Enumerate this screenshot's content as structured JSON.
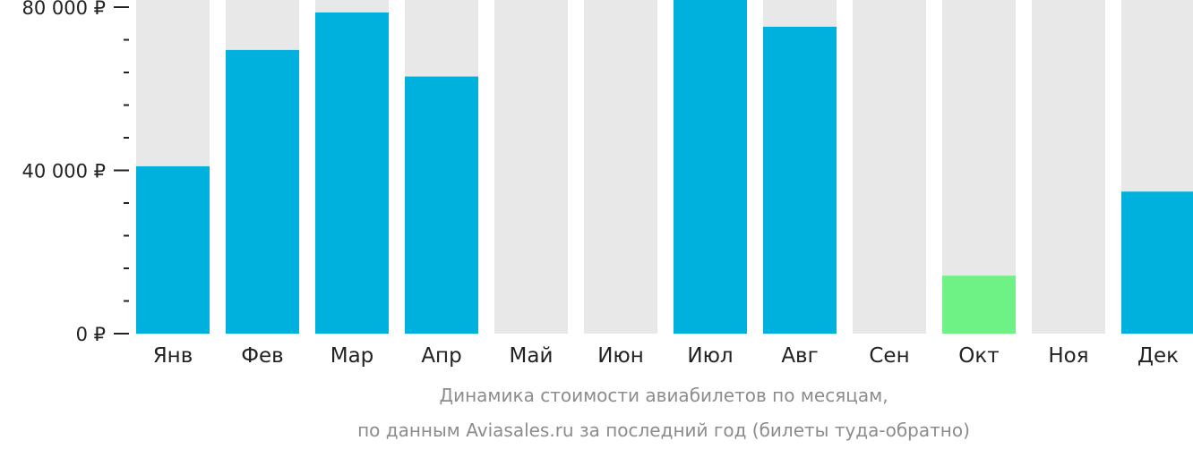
{
  "chart_data": {
    "type": "bar",
    "title": "",
    "xlabel": "",
    "ylabel": "",
    "caption": [
      "Динамика стоимости авиабилетов  по месяцам,",
      "по данным Aviasales.ru за последний год (билеты туда-обратно)"
    ],
    "categories": [
      "Янв",
      "Фев",
      "Мар",
      "Апр",
      "Май",
      "Июн",
      "Июл",
      "Авг",
      "Сен",
      "Окт",
      "Ноя",
      "Дек"
    ],
    "values": [
      41000,
      69500,
      78700,
      63000,
      null,
      null,
      84000,
      75200,
      null,
      14200,
      null,
      34800
    ],
    "ylim": [
      0,
      82000
    ],
    "yticks": [
      {
        "value": 0,
        "label": "0 ₽"
      },
      {
        "value": 40000,
        "label": "40 000 ₽"
      },
      {
        "value": 80000,
        "label": "80 000 ₽"
      }
    ],
    "minor_tick_step": 8000,
    "highlight_index": 9,
    "colors": {
      "bar": "#00b0dd",
      "highlight": "#6ef185",
      "background_column": "#e8e8e8",
      "axis": "#222222"
    }
  }
}
